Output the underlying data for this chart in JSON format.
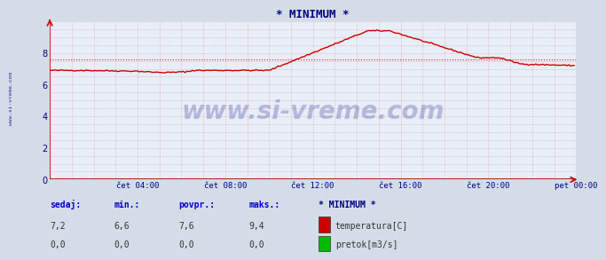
{
  "title": "* MINIMUM *",
  "title_color": "#000080",
  "bg_color": "#d4dce8",
  "plot_bg_color": "#e8eef8",
  "grid_color": "#e08080",
  "line_color_temp": "#cc0000",
  "line_color_flow": "#00bb00",
  "avg_value": 7.6,
  "ylim": [
    0,
    10
  ],
  "yticks": [
    0,
    2,
    4,
    6,
    8
  ],
  "xlabel_color": "#000080",
  "ylabel_color": "#000080",
  "tick_labels_x": [
    "čet 04:00",
    "čet 08:00",
    "čet 12:00",
    "čet 16:00",
    "čet 20:00",
    "pet 00:00"
  ],
  "watermark_text": "www.si-vreme.com",
  "watermark_color": "#000080",
  "sidebar_color": "#000080",
  "legend_title": "* MINIMUM *",
  "legend_items": [
    "temperatura[C]",
    "pretok[m3/s]"
  ],
  "legend_colors": [
    "#cc0000",
    "#00bb00"
  ],
  "table_headers": [
    "sedaj:",
    "min.:",
    "povpr.:",
    "maks.:"
  ],
  "table_values_temp": [
    "7,2",
    "6,6",
    "7,6",
    "9,4"
  ],
  "table_values_flow": [
    "0,0",
    "0,0",
    "0,0",
    "0,0"
  ],
  "n_points": 288,
  "flow_data_value": 0.0
}
